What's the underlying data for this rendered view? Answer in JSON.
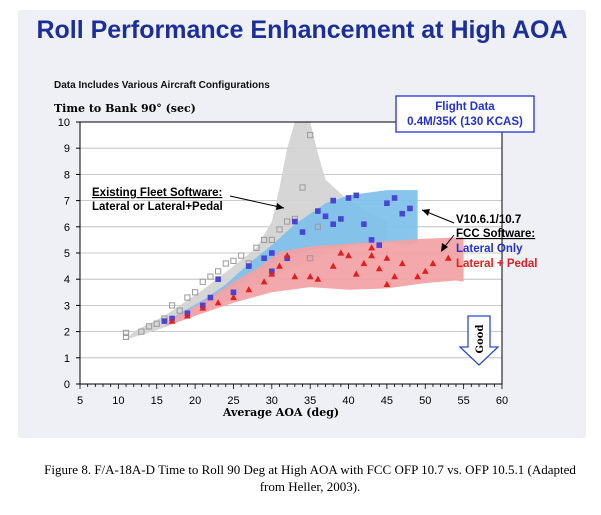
{
  "title": "Roll Performance Enhancement at High AOA",
  "subtitle": "Data Includes Various Aircraft Configurations",
  "caption": "Figure 8.  F/A-18A-D Time to Roll 90 Deg at High AOA with  FCC OFP 10.7 vs. OFP 10.5.1 (Adapted from Heller, 2003).",
  "colors": {
    "title": "#1b2f9a",
    "gray_region": "#d2d2d2",
    "blue_region": "#7ec0ec",
    "red_region": "#f2a2a4",
    "blue_points": "#4a44d6",
    "red_points": "#e02020",
    "label_blue": "#2230d8",
    "label_red": "#e02020",
    "good_arrow": "#2b4bd0"
  },
  "chart_data": {
    "type": "scatter",
    "title": "Roll Performance Enhancement at High AOA",
    "xlabel": "Average AOA (deg)",
    "ylabel": "Time to Bank 90° (sec)",
    "xlim": [
      5,
      60
    ],
    "ylim": [
      0,
      10
    ],
    "xticks": [
      5,
      10,
      15,
      20,
      25,
      30,
      35,
      40,
      45,
      50,
      55,
      60
    ],
    "yticks": [
      0,
      1,
      2,
      3,
      4,
      5,
      6,
      7,
      8,
      9,
      10
    ],
    "grid": "horizontal",
    "regions": [
      {
        "name": "Existing Fleet Software",
        "color": "#d2d2d2",
        "polygon": [
          [
            11,
            1.7
          ],
          [
            15,
            2.05
          ],
          [
            20,
            2.6
          ],
          [
            25,
            3.3
          ],
          [
            30,
            4.1
          ],
          [
            34,
            4.6
          ],
          [
            37,
            5.0
          ],
          [
            41,
            5.3
          ],
          [
            45,
            5.5
          ],
          [
            45,
            6.2
          ],
          [
            40,
            7.0
          ],
          [
            37,
            7.8
          ],
          [
            36,
            8.8
          ],
          [
            35,
            10
          ],
          [
            33,
            10
          ],
          [
            32,
            9.0
          ],
          [
            31,
            7.5
          ],
          [
            30,
            6.2
          ],
          [
            28,
            5.2
          ],
          [
            25,
            4.5
          ],
          [
            21,
            3.6
          ],
          [
            16,
            2.6
          ],
          [
            12,
            2.0
          ]
        ]
      },
      {
        "name": "Lateral Only",
        "color": "#7ec0ec",
        "polygon": [
          [
            16,
            2.3
          ],
          [
            18,
            2.6
          ],
          [
            21,
            3.1
          ],
          [
            25,
            3.7
          ],
          [
            28,
            4.2
          ],
          [
            31,
            4.8
          ],
          [
            35,
            5.1
          ],
          [
            40,
            5.3
          ],
          [
            45,
            5.4
          ],
          [
            48,
            5.3
          ],
          [
            49,
            5.4
          ],
          [
            49,
            7.4
          ],
          [
            45,
            7.4
          ],
          [
            40,
            7.2
          ],
          [
            37,
            6.9
          ],
          [
            33,
            6.1
          ],
          [
            30,
            5.3
          ],
          [
            27,
            4.6
          ],
          [
            24,
            3.8
          ],
          [
            21,
            3.2
          ],
          [
            18,
            2.7
          ]
        ]
      },
      {
        "name": "Lateral + Pedal",
        "color": "#f2a2a4",
        "polygon": [
          [
            16,
            2.2
          ],
          [
            20,
            2.6
          ],
          [
            25,
            3.1
          ],
          [
            30,
            3.5
          ],
          [
            35,
            3.7
          ],
          [
            40,
            3.6
          ],
          [
            45,
            3.65
          ],
          [
            50,
            3.85
          ],
          [
            54,
            3.95
          ],
          [
            55,
            3.9
          ],
          [
            55,
            5.6
          ],
          [
            50,
            5.55
          ],
          [
            45,
            5.45
          ],
          [
            40,
            5.35
          ],
          [
            35,
            5.25
          ],
          [
            31,
            5.05
          ],
          [
            28,
            4.4
          ],
          [
            25,
            3.9
          ],
          [
            22,
            3.3
          ],
          [
            19,
            2.8
          ],
          [
            17,
            2.5
          ]
        ]
      }
    ],
    "series": [
      {
        "name": "Existing Fleet Software",
        "marker": "open-square",
        "points": [
          [
            11,
            1.8
          ],
          [
            11,
            1.95
          ],
          [
            13,
            2.0
          ],
          [
            14,
            2.2
          ],
          [
            15,
            2.3
          ],
          [
            16,
            2.5
          ],
          [
            17,
            3.0
          ],
          [
            18,
            2.8
          ],
          [
            19,
            3.3
          ],
          [
            20,
            3.5
          ],
          [
            21,
            3.9
          ],
          [
            22,
            4.1
          ],
          [
            23,
            4.3
          ],
          [
            24,
            4.6
          ],
          [
            25,
            4.7
          ],
          [
            26,
            4.9
          ],
          [
            27,
            4.6
          ],
          [
            28,
            5.2
          ],
          [
            29,
            5.5
          ],
          [
            30,
            5.5
          ],
          [
            31,
            5.9
          ],
          [
            32,
            6.2
          ],
          [
            33,
            6.3
          ],
          [
            34,
            7.5
          ],
          [
            35,
            9.5
          ],
          [
            36,
            6.0
          ],
          [
            35,
            4.8
          ]
        ]
      },
      {
        "name": "Lateral Only",
        "marker": "filled-square",
        "points": [
          [
            16,
            2.4
          ],
          [
            17,
            2.5
          ],
          [
            19,
            2.7
          ],
          [
            21,
            3.0
          ],
          [
            22,
            3.3
          ],
          [
            23,
            4.0
          ],
          [
            25,
            3.5
          ],
          [
            27,
            4.5
          ],
          [
            29,
            4.8
          ],
          [
            30,
            4.3
          ],
          [
            30,
            5.0
          ],
          [
            32,
            4.8
          ],
          [
            33,
            6.2
          ],
          [
            34,
            5.8
          ],
          [
            36,
            6.6
          ],
          [
            37,
            6.4
          ],
          [
            38,
            7.0
          ],
          [
            38,
            6.1
          ],
          [
            39,
            6.3
          ],
          [
            40,
            7.1
          ],
          [
            41,
            7.2
          ],
          [
            42,
            6.1
          ],
          [
            43,
            5.5
          ],
          [
            44,
            5.3
          ],
          [
            45,
            6.9
          ],
          [
            46,
            7.1
          ],
          [
            47,
            6.5
          ],
          [
            48,
            6.7
          ]
        ]
      },
      {
        "name": "Lateral + Pedal",
        "marker": "filled-triangle",
        "points": [
          [
            17,
            2.4
          ],
          [
            19,
            2.6
          ],
          [
            21,
            2.9
          ],
          [
            23,
            3.1
          ],
          [
            25,
            3.3
          ],
          [
            27,
            3.6
          ],
          [
            29,
            3.9
          ],
          [
            30,
            4.2
          ],
          [
            31,
            4.5
          ],
          [
            32,
            4.9
          ],
          [
            33,
            4.1
          ],
          [
            35,
            4.1
          ],
          [
            36,
            4.0
          ],
          [
            38,
            4.5
          ],
          [
            39,
            5.0
          ],
          [
            40,
            4.9
          ],
          [
            41,
            4.2
          ],
          [
            42,
            4.6
          ],
          [
            43,
            4.9
          ],
          [
            43,
            5.2
          ],
          [
            44,
            4.4
          ],
          [
            45,
            3.8
          ],
          [
            45,
            4.8
          ],
          [
            46,
            4.1
          ],
          [
            47,
            4.6
          ],
          [
            49,
            4.1
          ],
          [
            50,
            4.3
          ],
          [
            51,
            4.6
          ],
          [
            53,
            4.8
          ]
        ]
      }
    ],
    "annotations": {
      "flight_data": [
        "Flight Data",
        "0.4M/35K (130 KCAS)"
      ],
      "existing": [
        "Existing Fleet Software:",
        "Lateral or Lateral+Pedal"
      ],
      "fcc": [
        "V10.6.1/10.7",
        "FCC Software:"
      ],
      "lateral_only": "Lateral Only",
      "lateral_pedal": "Lateral + Pedal",
      "good": "Good"
    }
  }
}
